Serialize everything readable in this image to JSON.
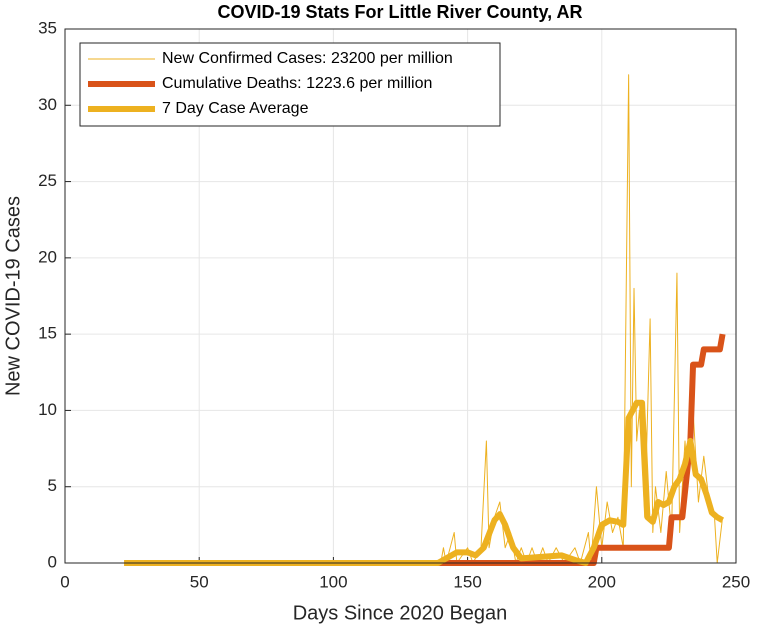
{
  "chart_data": {
    "type": "line",
    "title": "COVID-19 Stats For Little River County, AR",
    "x_label": "Days Since 2020 Began",
    "y_label": "New COVID-19 Cases",
    "xlim": [
      0,
      250
    ],
    "xticks": [
      0,
      50,
      100,
      150,
      200,
      250
    ],
    "ylim": [
      0,
      35
    ],
    "yticks": [
      0,
      5,
      10,
      15,
      20,
      25,
      30,
      35
    ],
    "grid": true,
    "legend": "northwest",
    "series": [
      {
        "name": "New Confirmed Cases: 23200 per million",
        "color": "#EDB120",
        "width": 1,
        "x": [
          22,
          140,
          141,
          142,
          145,
          146,
          150,
          152,
          155,
          157,
          158,
          160,
          162,
          164,
          166,
          168,
          170,
          172,
          174,
          176,
          178,
          180,
          183,
          186,
          190,
          192,
          195,
          196,
          198,
          200,
          202,
          204,
          206,
          208,
          210,
          211,
          212,
          213,
          214,
          216,
          218,
          219,
          220,
          222,
          224,
          226,
          228,
          229,
          231,
          232,
          234,
          236,
          238,
          240,
          242,
          243,
          245
        ],
        "values": [
          0,
          0,
          1,
          0,
          2,
          0,
          1,
          0,
          1,
          8,
          1,
          3,
          4,
          1,
          2,
          0,
          1,
          0,
          1,
          0,
          1,
          0,
          1,
          0,
          1,
          0,
          2,
          0,
          5,
          1,
          4,
          2,
          3,
          1,
          32,
          5,
          18,
          8,
          10,
          3,
          16,
          2,
          5,
          2,
          6,
          2,
          19,
          2,
          8,
          5,
          10,
          4,
          7,
          4,
          3,
          0,
          3
        ]
      },
      {
        "name": "Cumulative Deaths: 1223.6 per million",
        "color": "#D95319",
        "width": 6,
        "x": [
          137,
          197,
          198,
          225,
          226,
          230,
          233,
          234,
          237,
          238,
          244,
          245
        ],
        "values": [
          0,
          0,
          1,
          1,
          3,
          3,
          8,
          13,
          13,
          14,
          14,
          15
        ]
      },
      {
        "name": "7 Day Case Average",
        "color": "#EDB120",
        "width": 6,
        "x": [
          22,
          139,
          146,
          150,
          153,
          156,
          160,
          162,
          164,
          167,
          170,
          185,
          190,
          194,
          197,
          200,
          203,
          206,
          208,
          210,
          213,
          215,
          217,
          219,
          221,
          223,
          225,
          227,
          229,
          231,
          233,
          235,
          237,
          239,
          241,
          243,
          245
        ],
        "values": [
          0,
          0,
          0.7,
          0.7,
          0.5,
          1,
          2.8,
          3.2,
          2.5,
          1,
          0.3,
          0.5,
          0.2,
          0,
          1,
          2.5,
          2.8,
          2.7,
          2.5,
          9.5,
          10.5,
          10.5,
          3,
          2.7,
          4,
          3.8,
          4,
          5,
          5.5,
          6.5,
          8,
          5.8,
          5.5,
          4.5,
          3.3,
          3,
          2.8
        ]
      }
    ]
  }
}
